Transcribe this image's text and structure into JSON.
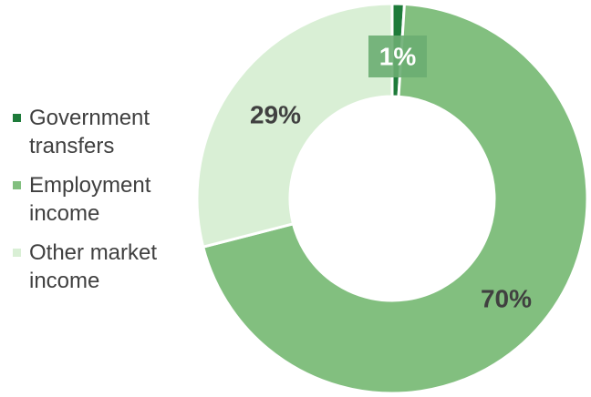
{
  "chart_data": {
    "type": "pie",
    "donut": true,
    "categories": [
      "Government transfers",
      "Employment income",
      "Other market income"
    ],
    "values": [
      1,
      70,
      29
    ],
    "data_labels": [
      "1%",
      "70%",
      "29%"
    ],
    "colors": [
      "#1e7b3a",
      "#82bf7f",
      "#d9efd5"
    ],
    "legend_position": "left",
    "start_angle_deg": 0,
    "direction": "clockwise"
  },
  "legend": {
    "items": [
      {
        "label": "Government transfers",
        "color": "#1e7b3a"
      },
      {
        "label": "Employment income",
        "color": "#82bf7f"
      },
      {
        "label": "Other market income",
        "color": "#d9efd5"
      }
    ]
  }
}
